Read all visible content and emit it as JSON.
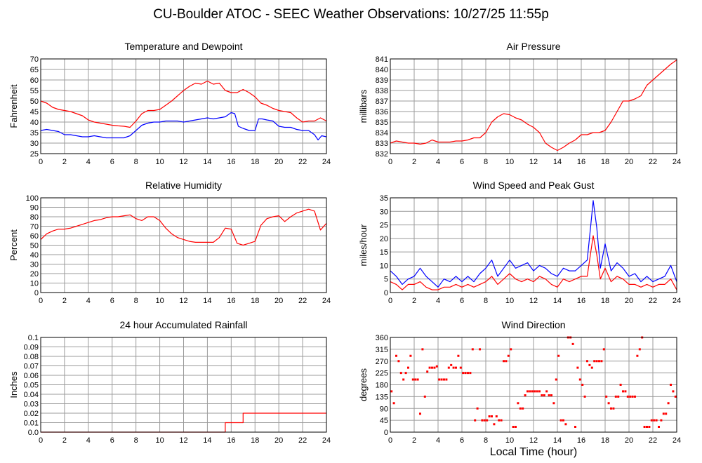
{
  "page": {
    "title": "CU-Boulder ATOC - SEEC Weather Observations: 10/27/25 11:55p",
    "x_axis_label": "Local Time (hour)"
  },
  "colors": {
    "red": "#ff0000",
    "blue": "#0000ff",
    "grid": "#9b9b9b",
    "frame": "#000000"
  },
  "chart_data": [
    {
      "type": "line",
      "title": "Temperature and Dewpoint",
      "ylabel": "Fahrenheit",
      "xlabel": "",
      "x_ticks": [
        0,
        2,
        4,
        6,
        8,
        10,
        12,
        14,
        16,
        18,
        20,
        22,
        24
      ],
      "y_ticks": [
        25,
        30,
        35,
        40,
        45,
        50,
        55,
        60,
        65,
        70
      ],
      "xlim": [
        0,
        24
      ],
      "ylim": [
        25,
        70
      ],
      "grid": true,
      "series": [
        {
          "color": "#ff0000",
          "x": [
            0,
            0.5,
            1,
            1.5,
            2,
            2.5,
            3,
            3.5,
            4,
            4.5,
            5,
            5.5,
            6,
            6.5,
            7,
            7.5,
            8,
            8.5,
            9,
            9.5,
            10,
            10.5,
            11,
            11.5,
            12,
            12.5,
            13,
            13.5,
            14,
            14.5,
            15,
            15.5,
            16,
            16.5,
            17,
            17.5,
            18,
            18.5,
            19,
            19.5,
            20,
            20.5,
            21,
            21.5,
            22,
            22.5,
            23,
            23.5,
            24
          ],
          "values": [
            50,
            49,
            47,
            46,
            45.5,
            45,
            44,
            43,
            41,
            40,
            39.5,
            39,
            38.5,
            38.2,
            38,
            37.5,
            40.5,
            44,
            45.5,
            45.5,
            46,
            48,
            50,
            52.5,
            55,
            57,
            58.5,
            58,
            59.5,
            58,
            58.5,
            55,
            54,
            54,
            55.5,
            54,
            52,
            49,
            48,
            46.5,
            45.5,
            45,
            44.5,
            42,
            40,
            40.5,
            40.5,
            42,
            40.5
          ]
        },
        {
          "color": "#0000ff",
          "x": [
            0,
            0.5,
            1,
            1.5,
            2,
            2.5,
            3,
            3.5,
            4,
            4.5,
            5,
            5.5,
            6,
            6.5,
            7,
            7.5,
            8,
            8.5,
            9,
            9.5,
            10,
            10.5,
            11,
            11.5,
            12,
            12.5,
            13,
            13.5,
            14,
            14.5,
            15,
            15.5,
            16,
            16.3,
            16.6,
            17,
            17.5,
            18,
            18.3,
            18.6,
            19,
            19.5,
            20,
            20.5,
            21,
            21.5,
            22,
            22.5,
            23,
            23.3,
            23.6,
            24
          ],
          "values": [
            36,
            36.5,
            36,
            35.5,
            34,
            34,
            33.5,
            33,
            33,
            33.5,
            33,
            32.5,
            32.5,
            32.5,
            32.5,
            33.5,
            36,
            38.5,
            39.5,
            40,
            40,
            40.5,
            40.5,
            40.5,
            40,
            40.5,
            41,
            41.5,
            42,
            41.5,
            42,
            42.5,
            44.5,
            44,
            38,
            37,
            36,
            36,
            41.5,
            41.5,
            41,
            40.5,
            38,
            37.5,
            37.5,
            36.5,
            36,
            36,
            34,
            31.5,
            33.5,
            33
          ]
        }
      ]
    },
    {
      "type": "line",
      "title": "Air Pressure",
      "ylabel": "millibars",
      "xlabel": "",
      "x_ticks": [
        0,
        2,
        4,
        6,
        8,
        10,
        12,
        14,
        16,
        18,
        20,
        22,
        24
      ],
      "y_ticks": [
        832,
        833,
        834,
        835,
        836,
        837,
        838,
        839,
        840,
        841
      ],
      "xlim": [
        0,
        24
      ],
      "ylim": [
        832,
        841
      ],
      "grid": true,
      "series": [
        {
          "color": "#ff0000",
          "x": [
            0,
            0.5,
            1,
            1.5,
            2,
            2.5,
            3,
            3.5,
            4,
            4.5,
            5,
            5.5,
            6,
            6.5,
            7,
            7.5,
            8,
            8.5,
            9,
            9.5,
            10,
            10.5,
            11,
            11.5,
            12,
            12.5,
            13,
            13.5,
            14,
            14.5,
            15,
            15.5,
            16,
            16.5,
            17,
            17.5,
            18,
            18.5,
            19,
            19.5,
            20,
            20.5,
            21,
            21.5,
            22,
            22.5,
            23,
            23.5,
            24
          ],
          "values": [
            833,
            833.2,
            833.1,
            833,
            833,
            832.9,
            833,
            833.3,
            833.1,
            833.1,
            833.1,
            833.2,
            833.2,
            833.3,
            833.5,
            833.5,
            834,
            835,
            835.5,
            835.8,
            835.7,
            835.4,
            835.2,
            834.8,
            834.5,
            834,
            833,
            832.6,
            832.3,
            832.6,
            833,
            833.3,
            833.8,
            833.8,
            834,
            834,
            834.2,
            835,
            836,
            837,
            837,
            837.2,
            837.5,
            838.5,
            839,
            839.5,
            840,
            840.5,
            840.9
          ]
        }
      ]
    },
    {
      "type": "line",
      "title": "Relative Humidity",
      "ylabel": "Percent",
      "xlabel": "",
      "x_ticks": [
        0,
        2,
        4,
        6,
        8,
        10,
        12,
        14,
        16,
        18,
        20,
        22,
        24
      ],
      "y_ticks": [
        0,
        10,
        20,
        30,
        40,
        50,
        60,
        70,
        80,
        90,
        100
      ],
      "xlim": [
        0,
        24
      ],
      "ylim": [
        0,
        100
      ],
      "grid": true,
      "series": [
        {
          "color": "#ff0000",
          "x": [
            0,
            0.5,
            1,
            1.5,
            2,
            2.5,
            3,
            3.5,
            4,
            4.5,
            5,
            5.5,
            6,
            6.5,
            7,
            7.5,
            8,
            8.5,
            9,
            9.5,
            10,
            10.5,
            11,
            11.5,
            12,
            12.5,
            13,
            13.5,
            14,
            14.5,
            15,
            15.5,
            16,
            16.5,
            17,
            17.5,
            18,
            18.5,
            19,
            19.5,
            20,
            20.5,
            21,
            21.5,
            22,
            22.5,
            23,
            23.5,
            24
          ],
          "values": [
            56,
            62,
            65,
            67,
            67,
            68,
            70,
            72,
            74,
            76,
            77,
            79,
            80,
            80,
            81,
            82,
            78,
            76,
            80,
            80,
            76,
            68,
            62,
            58,
            56,
            54,
            53,
            53,
            53,
            53,
            58,
            68,
            67,
            52,
            50,
            52,
            54,
            71,
            78,
            80,
            81,
            75,
            80,
            84,
            86,
            88,
            86,
            66,
            73
          ]
        }
      ]
    },
    {
      "type": "line",
      "title": "Wind Speed and Peak Gust",
      "ylabel": "miles/hour",
      "xlabel": "",
      "x_ticks": [
        0,
        2,
        4,
        6,
        8,
        10,
        12,
        14,
        16,
        18,
        20,
        22,
        24
      ],
      "y_ticks": [
        0,
        5,
        10,
        15,
        20,
        25,
        30,
        35
      ],
      "xlim": [
        0,
        24
      ],
      "ylim": [
        0,
        35
      ],
      "grid": true,
      "series": [
        {
          "color": "#0000ff",
          "x": [
            0,
            0.5,
            1,
            1.5,
            2,
            2.5,
            3,
            3.5,
            4,
            4.5,
            5,
            5.5,
            6,
            6.5,
            7,
            7.5,
            8,
            8.5,
            9,
            9.5,
            10,
            10.5,
            11,
            11.5,
            12,
            12.5,
            13,
            13.5,
            14,
            14.5,
            15,
            15.5,
            16,
            16.5,
            16.8,
            17,
            17.3,
            17.6,
            18,
            18.5,
            19,
            19.5,
            20,
            20.5,
            21,
            21.5,
            22,
            22.5,
            23,
            23.5,
            24
          ],
          "values": [
            8,
            6,
            3,
            5,
            6,
            9,
            6,
            4,
            2,
            5,
            4,
            6,
            4,
            6,
            4,
            7,
            9,
            12,
            6,
            9,
            12,
            9,
            10,
            11,
            8,
            10,
            9,
            7,
            6,
            9,
            8,
            8,
            10,
            12,
            25,
            34,
            24,
            9,
            18,
            8,
            11,
            9,
            6,
            7,
            4,
            6,
            4,
            5,
            6,
            10,
            4
          ]
        },
        {
          "color": "#ff0000",
          "x": [
            0,
            0.5,
            1,
            1.5,
            2,
            2.5,
            3,
            3.5,
            4,
            4.5,
            5,
            5.5,
            6,
            6.5,
            7,
            7.5,
            8,
            8.5,
            9,
            9.5,
            10,
            10.5,
            11,
            11.5,
            12,
            12.5,
            13,
            13.5,
            14,
            14.5,
            15,
            15.5,
            16,
            16.5,
            16.8,
            17,
            17.3,
            17.6,
            18,
            18.5,
            19,
            19.5,
            20,
            20.5,
            21,
            21.5,
            22,
            22.5,
            23,
            23.5,
            24
          ],
          "values": [
            4,
            3,
            1,
            3,
            3,
            4,
            2,
            1,
            1,
            2,
            2,
            3,
            2,
            3,
            2,
            3,
            4,
            6,
            3,
            5,
            7,
            5,
            4,
            5,
            4,
            6,
            5,
            3,
            2,
            5,
            4,
            5,
            6,
            6,
            15,
            21,
            14,
            5,
            9,
            4,
            6,
            5,
            3,
            3,
            2,
            3,
            2,
            3,
            3,
            5,
            1
          ]
        }
      ]
    },
    {
      "type": "line",
      "title": "24 hour Accumulated Rainfall",
      "ylabel": "Inches",
      "xlabel": "",
      "x_ticks": [
        0,
        2,
        4,
        6,
        8,
        10,
        12,
        14,
        16,
        18,
        20,
        22,
        24
      ],
      "y_ticks": [
        "0.0",
        "0.01",
        "0.02",
        "0.03",
        "0.04",
        "0.05",
        "0.06",
        "0.07",
        "0.08",
        "0.09",
        "0.1"
      ],
      "xlim": [
        0,
        24
      ],
      "ylim": [
        0,
        0.1
      ],
      "grid": true,
      "series": [
        {
          "color": "#ff0000",
          "x": [
            0,
            15.5,
            15.5,
            17,
            17,
            24
          ],
          "values": [
            0,
            0,
            0.01,
            0.01,
            0.02,
            0.02
          ]
        }
      ]
    },
    {
      "type": "scatter",
      "title": "Wind Direction",
      "ylabel": "degrees",
      "xlabel": "Local Time (hour)",
      "x_ticks": [
        0,
        2,
        4,
        6,
        8,
        10,
        12,
        14,
        16,
        18,
        20,
        22,
        24
      ],
      "y_ticks": [
        0,
        45,
        90,
        135,
        180,
        225,
        270,
        315,
        360
      ],
      "xlim": [
        0,
        24
      ],
      "ylim": [
        0,
        360
      ],
      "grid": true,
      "series": [
        {
          "color": "#ff0000",
          "x": [
            0.1,
            0.3,
            0.5,
            0.7,
            0.9,
            1.1,
            1.3,
            1.5,
            1.7,
            1.9,
            2.1,
            2.3,
            2.5,
            2.7,
            2.9,
            3.1,
            3.3,
            3.5,
            3.7,
            3.9,
            4.1,
            4.3,
            4.5,
            4.7,
            4.9,
            5.1,
            5.3,
            5.5,
            5.7,
            5.9,
            6.1,
            6.3,
            6.5,
            6.7,
            6.9,
            7.1,
            7.3,
            7.5,
            7.7,
            7.9,
            8.1,
            8.3,
            8.5,
            8.7,
            8.9,
            9.1,
            9.3,
            9.5,
            9.7,
            9.9,
            10.1,
            10.3,
            10.5,
            10.7,
            10.9,
            11.1,
            11.3,
            11.5,
            11.7,
            11.9,
            12.1,
            12.3,
            12.5,
            12.7,
            12.9,
            13.1,
            13.3,
            13.5,
            13.7,
            13.9,
            14.1,
            14.3,
            14.5,
            14.7,
            14.9,
            15.1,
            15.3,
            15.5,
            15.7,
            15.9,
            16.1,
            16.3,
            16.5,
            16.7,
            16.9,
            17.1,
            17.3,
            17.5,
            17.7,
            17.9,
            18.1,
            18.3,
            18.5,
            18.7,
            18.9,
            19.1,
            19.3,
            19.5,
            19.7,
            19.9,
            20.1,
            20.3,
            20.5,
            20.7,
            20.9,
            21.1,
            21.3,
            21.5,
            21.7,
            21.9,
            22.1,
            22.3,
            22.5,
            22.7,
            22.9,
            23.1,
            23.3,
            23.5,
            23.7,
            23.9
          ],
          "values": [
            155,
            110,
            290,
            270,
            225,
            200,
            225,
            245,
            290,
            200,
            200,
            200,
            70,
            315,
            135,
            230,
            245,
            245,
            245,
            250,
            200,
            200,
            200,
            200,
            245,
            255,
            245,
            245,
            290,
            245,
            225,
            225,
            225,
            225,
            315,
            45,
            90,
            315,
            45,
            45,
            45,
            60,
            60,
            30,
            60,
            45,
            45,
            270,
            270,
            290,
            315,
            20,
            20,
            110,
            90,
            90,
            140,
            155,
            155,
            155,
            155,
            155,
            155,
            140,
            140,
            155,
            140,
            140,
            110,
            200,
            290,
            45,
            45,
            30,
            360,
            360,
            335,
            20,
            245,
            200,
            180,
            135,
            270,
            255,
            245,
            270,
            270,
            270,
            270,
            315,
            135,
            110,
            90,
            90,
            135,
            135,
            180,
            155,
            155,
            135,
            135,
            135,
            135,
            290,
            315,
            360,
            20,
            20,
            20,
            45,
            45,
            45,
            20,
            45,
            70,
            70,
            110,
            180,
            155,
            135
          ]
        }
      ]
    }
  ]
}
